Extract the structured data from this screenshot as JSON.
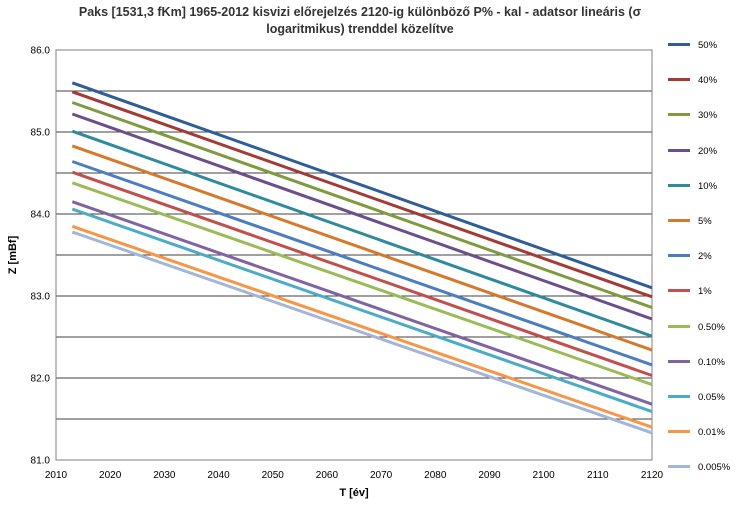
{
  "title": {
    "line1": "Paks [1531,3 fKm] 1965-2012 kisvizi előrejelzés 2120-ig különböző P% - kal  -  adatsor lineáris (σ",
    "line2": "logaritmikus) trenddel közelítve"
  },
  "chart_data": {
    "type": "line",
    "title": "Paks [1531,3 fKm] 1965-2012 kisvizi előrejelzés 2120-ig különböző P% - kal  -  adatsor lineáris (σ logaritmikus) trenddel közelítve",
    "xlabel": "T [év]",
    "ylabel": "Z [mBf]",
    "xlim": [
      2010,
      2120
    ],
    "ylim": [
      81.0,
      86.0
    ],
    "xticks": [
      "2010",
      "2020",
      "2030",
      "2040",
      "2050",
      "2060",
      "2070",
      "2080",
      "2090",
      "2100",
      "2110",
      "2120"
    ],
    "yticks": [
      "81.0",
      "81.5",
      "82.0",
      "82.5",
      "83.0",
      "83.5",
      "84.0",
      "84.5",
      "85.0",
      "85.5",
      "86.0"
    ],
    "y_tick_labels_shown": [
      "81.0",
      "82.0",
      "83.0",
      "84.0",
      "85.0",
      "86.0"
    ],
    "grid": "horizontal",
    "legend_position": "right",
    "series": [
      {
        "name": "50%",
        "color": "#2E5D98",
        "x": [
          2013,
          2120
        ],
        "y": [
          85.6,
          83.1
        ]
      },
      {
        "name": "40%",
        "color": "#A33A36",
        "x": [
          2013,
          2120
        ],
        "y": [
          85.49,
          82.99
        ]
      },
      {
        "name": "30%",
        "color": "#7F9A3F",
        "x": [
          2013,
          2120
        ],
        "y": [
          85.36,
          82.86
        ]
      },
      {
        "name": "20%",
        "color": "#6A4F8A",
        "x": [
          2013,
          2120
        ],
        "y": [
          85.22,
          82.72
        ]
      },
      {
        "name": "10%",
        "color": "#2E8A9C",
        "x": [
          2013,
          2120
        ],
        "y": [
          85.01,
          82.51
        ]
      },
      {
        "name": "5%",
        "color": "#D57A2C",
        "x": [
          2013,
          2120
        ],
        "y": [
          84.83,
          82.34
        ]
      },
      {
        "name": "2%",
        "color": "#4A7EC0",
        "x": [
          2013,
          2120
        ],
        "y": [
          84.64,
          82.16
        ]
      },
      {
        "name": "1%",
        "color": "#C0504D",
        "x": [
          2013,
          2120
        ],
        "y": [
          84.51,
          82.03
        ]
      },
      {
        "name": "0.50%",
        "color": "#9BBB59",
        "x": [
          2013,
          2120
        ],
        "y": [
          84.38,
          81.92
        ]
      },
      {
        "name": "0.10%",
        "color": "#8064A2",
        "x": [
          2013,
          2120
        ],
        "y": [
          84.15,
          81.68
        ]
      },
      {
        "name": "0.05%",
        "color": "#4BACC6",
        "x": [
          2013,
          2120
        ],
        "y": [
          84.06,
          81.59
        ]
      },
      {
        "name": "0.01%",
        "color": "#F79646",
        "x": [
          2013,
          2120
        ],
        "y": [
          83.85,
          81.4
        ]
      },
      {
        "name": "0.005%",
        "color": "#A5B5D5",
        "x": [
          2013,
          2120
        ],
        "y": [
          83.78,
          81.33
        ]
      }
    ]
  }
}
